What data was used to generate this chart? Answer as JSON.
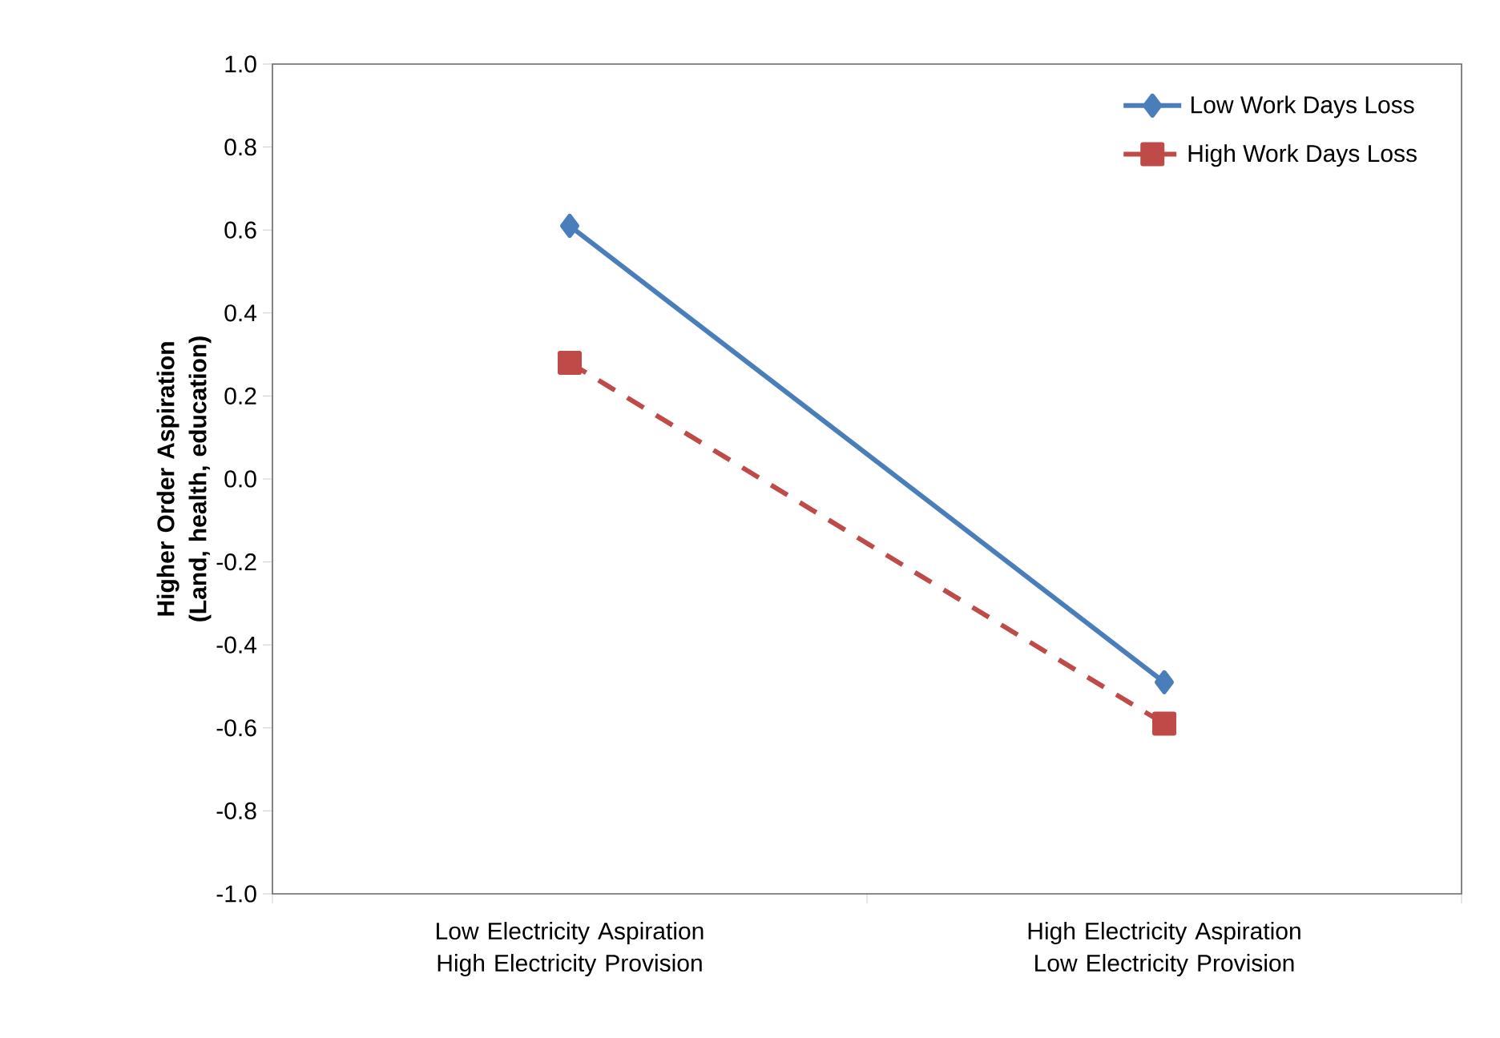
{
  "chart_data": {
    "type": "line",
    "categories": [
      "Low Electricity Aspiration High Electricity Provision",
      "High Electricity Aspiration Low Electricity Provision"
    ],
    "ylabel": "Higher Order Aspiration (Land, health, education)",
    "series": [
      {
        "name": "Low Work Days Loss",
        "color": "#4a7ebb",
        "values": [
          0.61,
          -0.49
        ],
        "marker": "diamond",
        "line_style": "solid"
      },
      {
        "name": "High Work Days Loss",
        "color": "#be4b48",
        "values": [
          0.28,
          -0.59
        ],
        "marker": "square",
        "line_style": "dashed"
      }
    ],
    "ylim": [
      -1.0,
      1.0
    ],
    "yticks": [
      {
        "value": -1.0,
        "label": "-1.0"
      },
      {
        "value": -0.8,
        "label": "-0.8"
      },
      {
        "value": -0.6,
        "label": "-0.6"
      },
      {
        "value": -0.4,
        "label": "-0.4"
      },
      {
        "value": -0.2,
        "label": "-0.2"
      },
      {
        "value": 0.0,
        "label": "0.0"
      },
      {
        "value": 0.2,
        "label": "0.2"
      },
      {
        "value": 0.4,
        "label": "0.4"
      },
      {
        "value": 0.6,
        "label": "0.6"
      },
      {
        "value": 0.8,
        "label": "0.8"
      },
      {
        "value": 1.0,
        "label": "1.0"
      }
    ],
    "grid": false,
    "legend": "top right"
  }
}
